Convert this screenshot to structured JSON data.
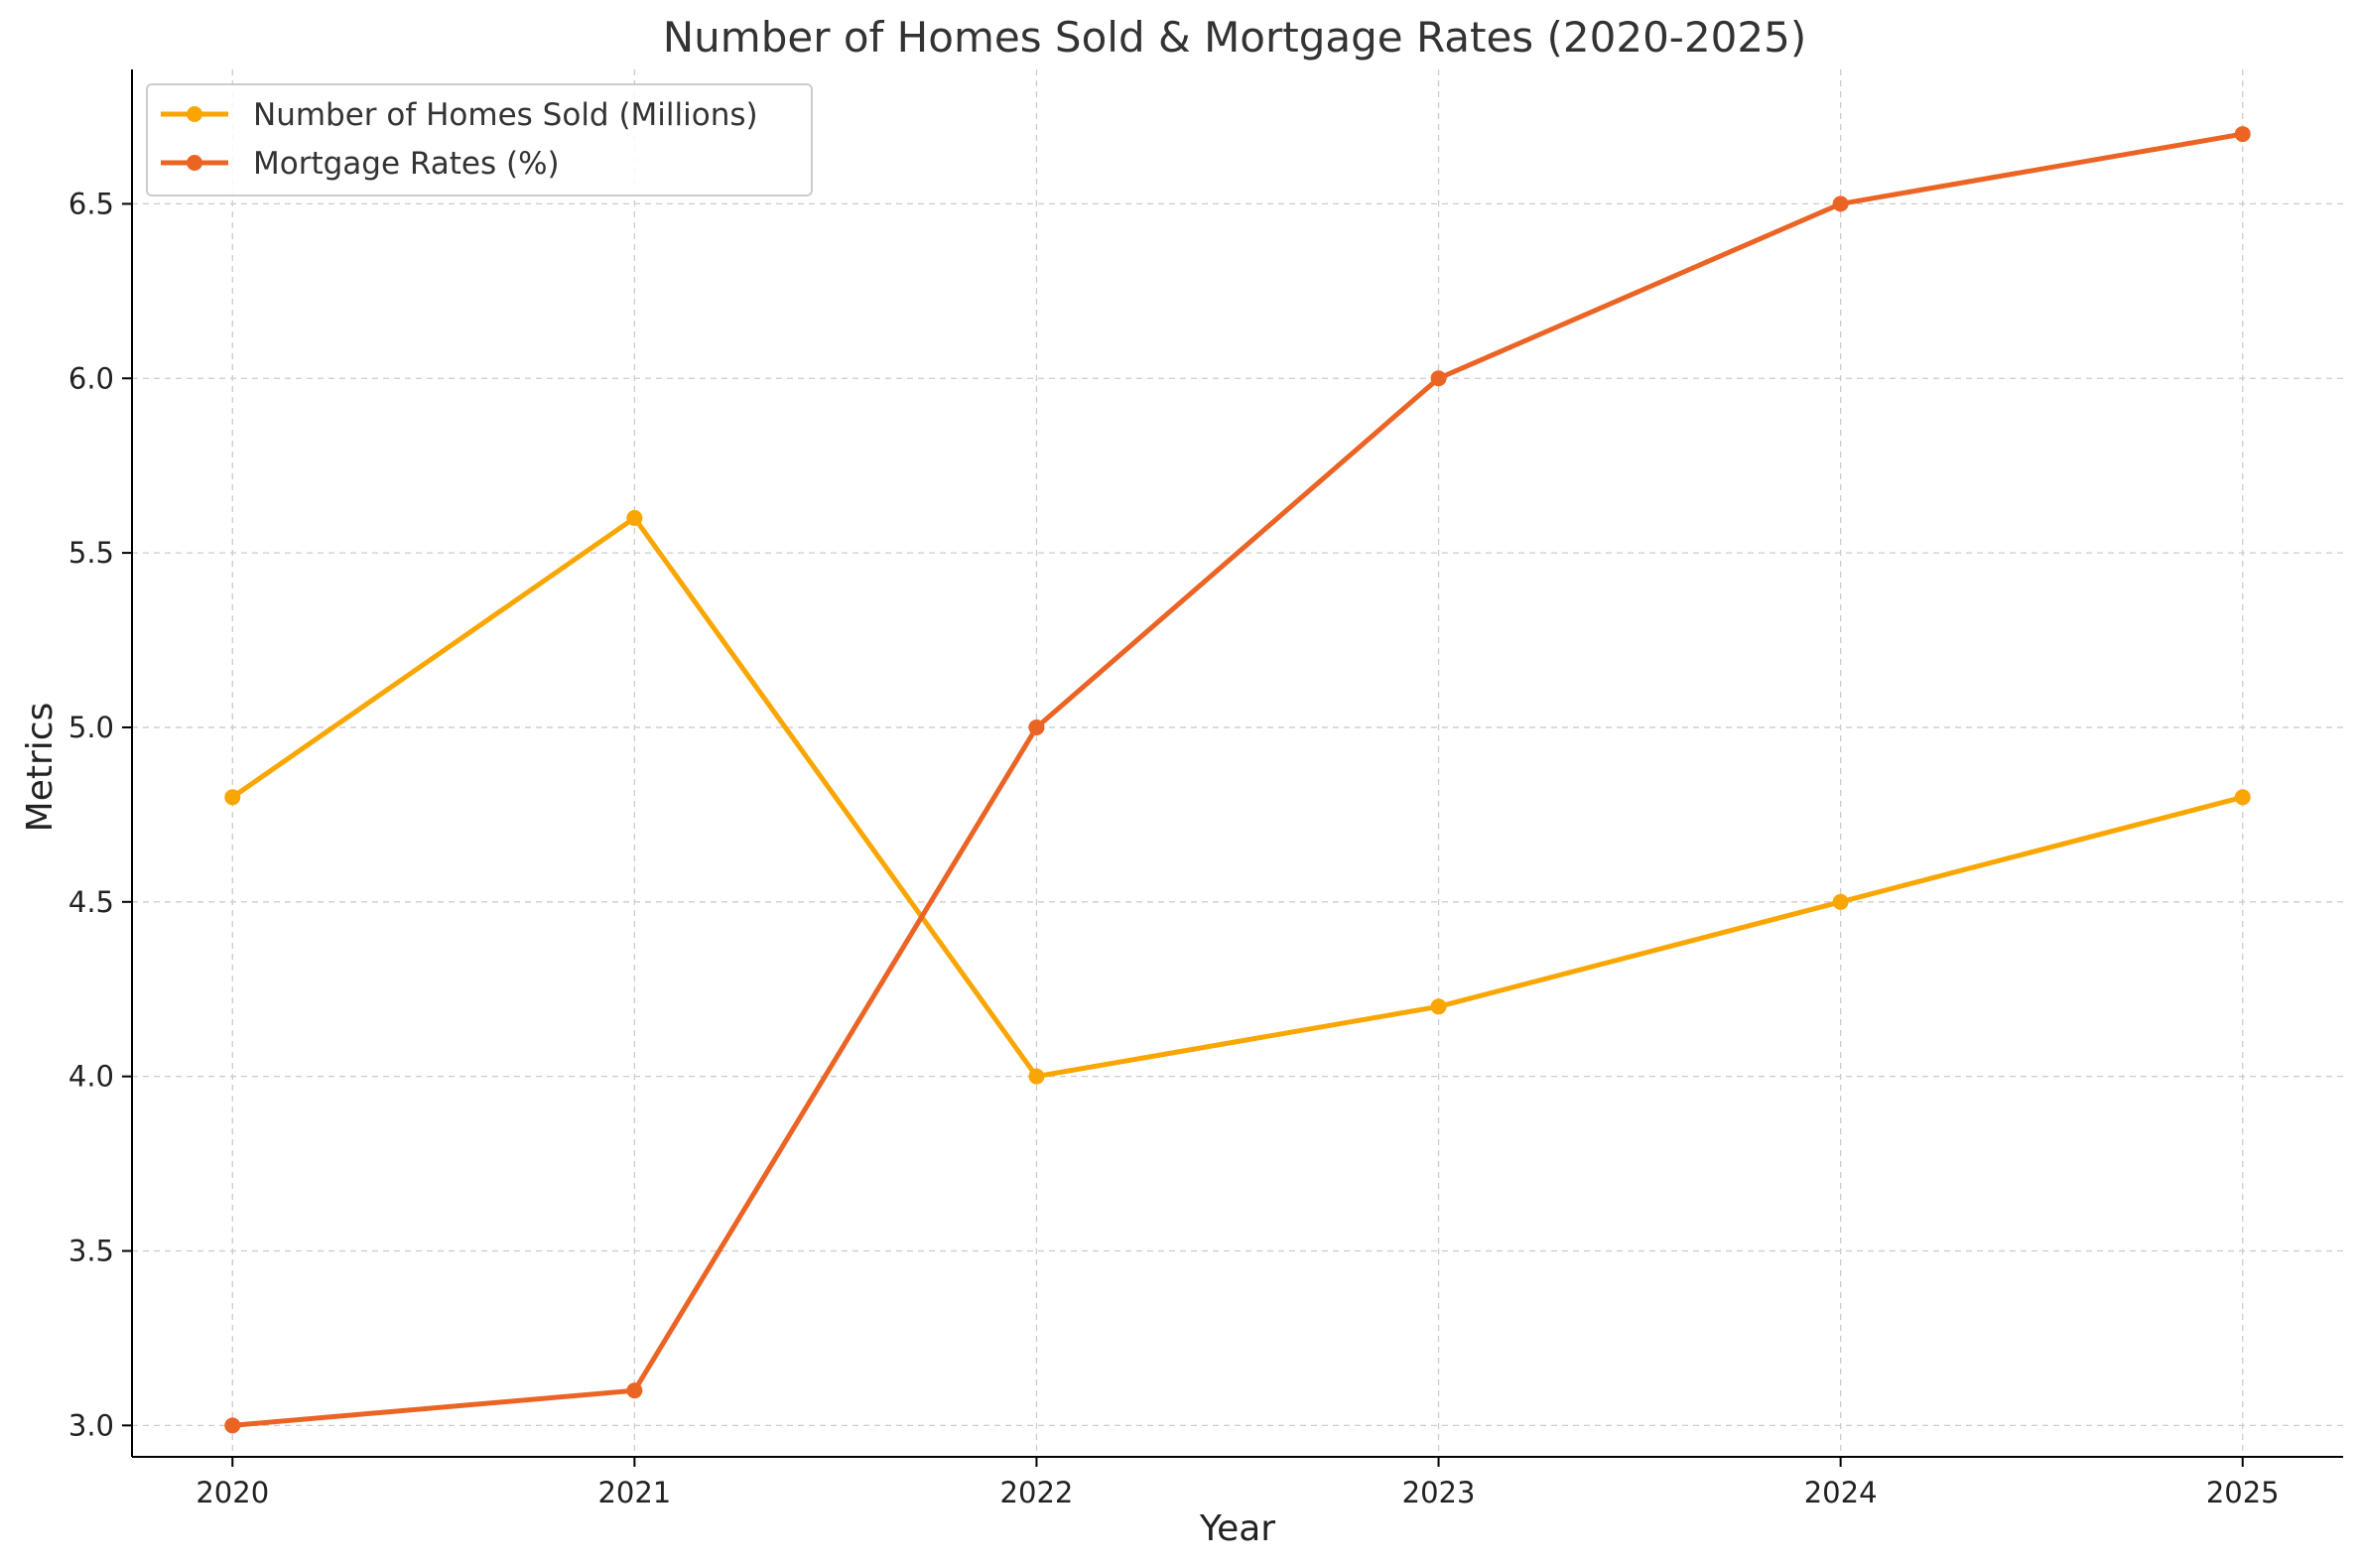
{
  "chart_data": {
    "type": "line",
    "title": "Number of Homes Sold & Mortgage Rates (2020-2025)",
    "xlabel": "Year",
    "ylabel": "Metrics",
    "x": [
      "2020",
      "2021",
      "2022",
      "2023",
      "2024",
      "2025"
    ],
    "xlim": [
      2019.75,
      2025.25
    ],
    "ylim": [
      2.91,
      6.885
    ],
    "yticks": [
      "3.0",
      "3.5",
      "4.0",
      "4.5",
      "5.0",
      "5.5",
      "6.0",
      "6.5"
    ],
    "grid": true,
    "legend_position": "top-left",
    "series": [
      {
        "name": "Number of Homes Sold (Millions)",
        "color": "#F9A602",
        "marker": "circle",
        "values": [
          4.8,
          5.6,
          4.0,
          4.2,
          4.5,
          4.8
        ]
      },
      {
        "name": "Mortgage Rates (%)",
        "color": "#EB6424",
        "marker": "circle",
        "values": [
          3.0,
          3.1,
          5.0,
          6.0,
          6.5,
          6.7
        ]
      }
    ]
  }
}
